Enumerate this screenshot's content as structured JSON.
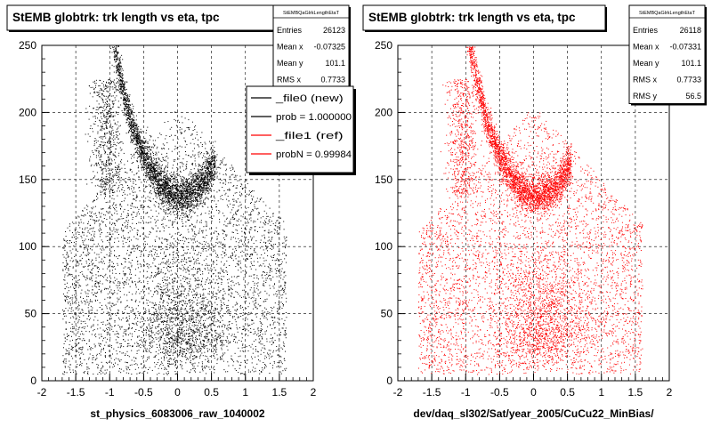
{
  "chart_data": [
    {
      "type": "scatter",
      "title": "StEMB globtrk: trk length vs eta, tpc",
      "xlabel": "st_physics_6083006_raw_1040002",
      "ylabel": "",
      "xlim": [
        -2,
        2
      ],
      "ylim": [
        0,
        250
      ],
      "xticks": [
        "-2",
        "-1.5",
        "-1",
        "-0.5",
        "0",
        "0.5",
        "1",
        "1.5",
        "2"
      ],
      "yticks": [
        "0",
        "50",
        "100",
        "150",
        "200",
        "250"
      ],
      "grid": true,
      "marker_color": "#000000",
      "stats": {
        "name": "StEMBQaGlrkLengthEtaT",
        "rows": [
          {
            "label": "Entries",
            "value": "26123"
          },
          {
            "label": "Mean x",
            "value": "-0.07325"
          },
          {
            "label": "Mean y",
            "value": "101.1"
          },
          {
            "label": "RMS x",
            "value": "0.7733"
          }
        ]
      },
      "legend": {
        "placement": "top-right",
        "entries": [
          {
            "label": "_file0 (new)",
            "color": "#000000"
          },
          {
            "label": "prob = 1.000000",
            "color": "#000000"
          },
          {
            "label": "_file1 (ref)",
            "color": "#ff0000"
          },
          {
            "label": "probN = 0.99984",
            "color": "#ff0000"
          }
        ]
      },
      "distribution": {
        "entries": 26123,
        "bands": [
          {
            "name": "u-band",
            "x": [
              -1.0,
              0.55
            ],
            "y_at_center": 138,
            "curvature": 100
          },
          {
            "name": "low-blob",
            "x": [
              -0.3,
              0.6
            ],
            "y": [
              5,
              70
            ]
          }
        ]
      }
    },
    {
      "type": "scatter",
      "title": "StEMB globtrk: trk length vs eta, tpc",
      "xlabel": "dev/daq_sl302/Sat/year_2005/CuCu22_MinBias/",
      "ylabel": "",
      "xlim": [
        -2,
        2
      ],
      "ylim": [
        0,
        250
      ],
      "xticks": [
        "-2",
        "-1.5",
        "-1",
        "-0.5",
        "0",
        "0.5",
        "1",
        "1.5",
        "2"
      ],
      "yticks": [
        "0",
        "50",
        "100",
        "150",
        "200",
        "250"
      ],
      "grid": true,
      "marker_color": "#ff0000",
      "stats": {
        "name": "StEMBQaGlrkLengthEtaT",
        "rows": [
          {
            "label": "Entries",
            "value": "26118"
          },
          {
            "label": "Mean x",
            "value": "-0.07331"
          },
          {
            "label": "Mean y",
            "value": "101.1"
          },
          {
            "label": "RMS x",
            "value": "0.7733"
          },
          {
            "label": "RMS y",
            "value": "56.5"
          }
        ]
      },
      "distribution": {
        "entries": 26118,
        "bands": [
          {
            "name": "u-band",
            "x": [
              -1.0,
              0.55
            ],
            "y_at_center": 138,
            "curvature": 100
          },
          {
            "name": "low-blob",
            "x": [
              -0.3,
              0.6
            ],
            "y": [
              5,
              70
            ]
          }
        ]
      }
    }
  ]
}
